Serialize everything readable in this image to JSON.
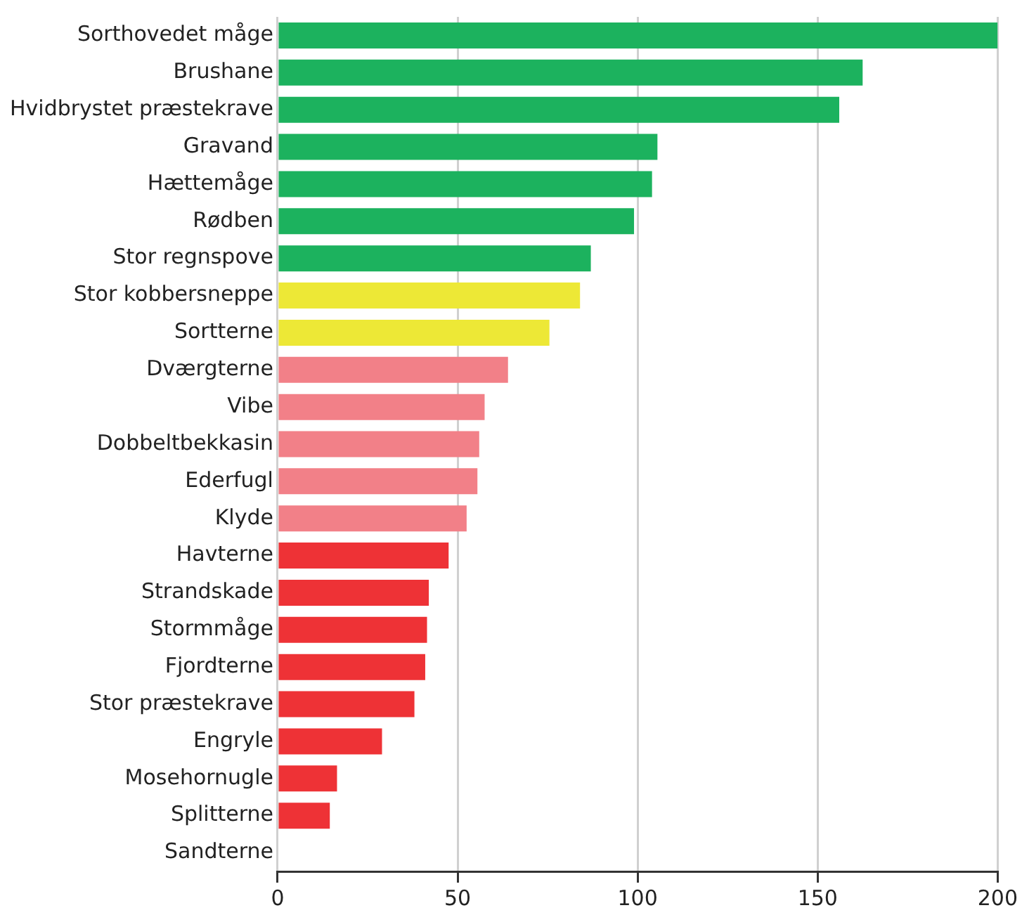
{
  "chart_data": {
    "type": "bar",
    "orientation": "horizontal",
    "categories": [
      "Sorthovedet måge",
      "Brushane",
      "Hvidbrystet præstekrave",
      "Gravand",
      "Hættemåge",
      "Rødben",
      "Stor regnspove",
      "Stor kobbersneppe",
      "Sortterne",
      "Dværgterne",
      "Vibe",
      "Dobbeltbekkasin",
      "Ederfugl",
      "Klyde",
      "Havterne",
      "Strandskade",
      "Stormmåge",
      "Fjordterne",
      "Stor præstekrave",
      "Engryle",
      "Mosehornugle",
      "Splitterne",
      "Sandterne"
    ],
    "values": [
      200,
      162.5,
      156,
      105.5,
      104,
      99,
      87,
      84,
      75.5,
      64,
      57.5,
      56,
      55.5,
      52.5,
      47.5,
      42,
      41.5,
      41,
      38,
      29,
      16.5,
      14.5,
      0
    ],
    "colors": [
      "#1cb25e",
      "#1cb25e",
      "#1cb25e",
      "#1cb25e",
      "#1cb25e",
      "#1cb25e",
      "#1cb25e",
      "#ede836",
      "#ede836",
      "#f28088",
      "#f28088",
      "#f28088",
      "#f28088",
      "#f28088",
      "#ee3236",
      "#ee3236",
      "#ee3236",
      "#ee3236",
      "#ee3236",
      "#ee3236",
      "#ee3236",
      "#ee3236",
      "#ee3236"
    ],
    "xlim": [
      0,
      200
    ],
    "xticks": [
      0,
      50,
      100,
      150,
      200
    ],
    "grid": "x",
    "legend": false
  }
}
